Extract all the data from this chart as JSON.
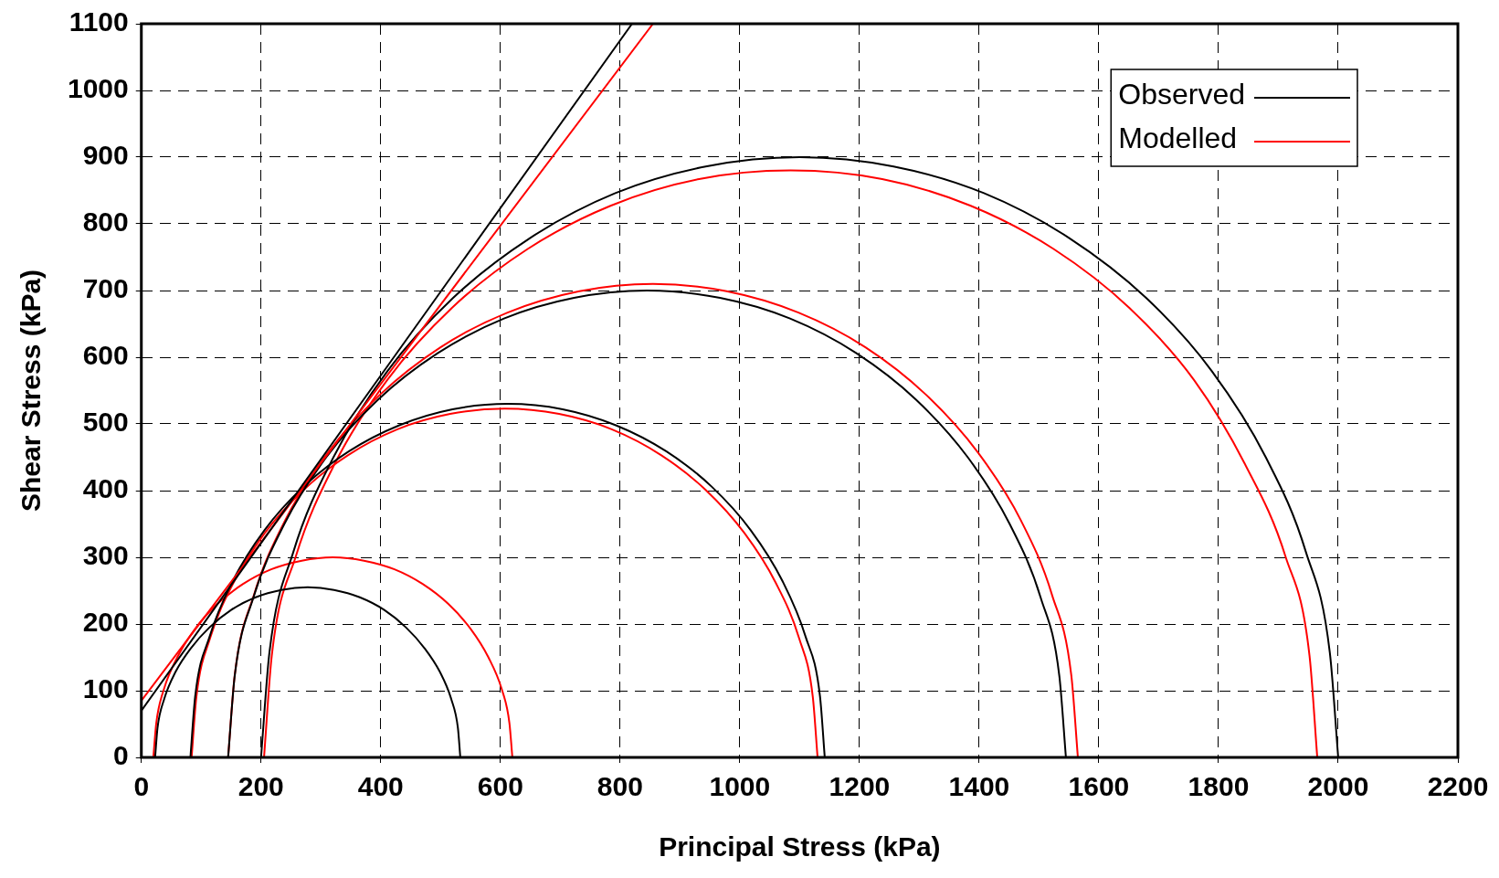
{
  "chart_data": {
    "type": "line",
    "xlabel": "Principal Stress (kPa)",
    "ylabel": "Shear Stress (kPa)",
    "xlim": [
      0,
      2200
    ],
    "xticks": [
      0,
      200,
      400,
      600,
      800,
      1000,
      1200,
      1400,
      1600,
      1800,
      2000,
      2200
    ],
    "ylim": [
      0,
      1100
    ],
    "yticks": [
      0,
      100,
      200,
      300,
      400,
      500,
      600,
      700,
      800,
      900,
      1000,
      1100
    ],
    "grid": true,
    "legend": "top right",
    "series": [
      {
        "name": "Observed",
        "color": "#000000",
        "x": [
          0,
          820
        ],
        "values": [
          70,
          1100
        ]
      },
      {
        "name": "Modelled",
        "color": "#ff0000",
        "x": [
          0,
          855
        ],
        "values": [
          85,
          1100
        ]
      },
      {
        "color": "#000000",
        "x": [
          23,
          27,
          38,
          57,
          83,
          114,
          150,
          191,
          234,
          278,
          322,
          365,
          406,
          442,
          473,
          499,
          518,
          529,
          533
        ],
        "values": [
          0,
          44,
          87,
          128,
          164,
          195,
          221,
          240,
          251,
          255,
          251,
          240,
          221,
          195,
          164,
          128,
          87,
          44,
          0
        ]
      },
      {
        "color": "#000000",
        "x": [
          82,
          90,
          114,
          153,
          206,
          271,
          347,
          431,
          520,
          612,
          704,
          793,
          877,
          953,
          1018,
          1071,
          1110,
          1134,
          1142
        ],
        "values": [
          0,
          92,
          181,
          265,
          341,
          406,
          459,
          498,
          522,
          530,
          522,
          498,
          459,
          406,
          341,
          265,
          181,
          92,
          0
        ]
      },
      {
        "color": "#000000",
        "x": [
          145,
          156,
          187,
          239,
          309,
          395,
          495,
          606,
          723,
          845,
          967,
          1084,
          1195,
          1295,
          1381,
          1451,
          1503,
          1534,
          1545
        ],
        "values": [
          0,
          122,
          239,
          350,
          450,
          536,
          606,
          658,
          689,
          700,
          689,
          658,
          606,
          536,
          450,
          350,
          239,
          122,
          0
        ]
      },
      {
        "color": "#000000",
        "x": [
          200,
          214,
          254,
          321,
          411,
          521,
          650,
          792,
          943,
          1100,
          1257,
          1408,
          1550,
          1679,
          1789,
          1879,
          1946,
          1986,
          2000
        ],
        "values": [
          0,
          157,
          308,
          450,
          579,
          689,
          779,
          846,
          886,
          900,
          886,
          846,
          779,
          689,
          579,
          450,
          308,
          157,
          0
        ]
      },
      {
        "color": "#ff0000",
        "x": [
          20,
          25,
          38,
          60,
          90,
          127,
          170,
          217,
          268,
          320,
          372,
          423,
          470,
          513,
          550,
          580,
          602,
          615,
          620
        ],
        "values": [
          0,
          52,
          103,
          150,
          193,
          230,
          260,
          282,
          295,
          300,
          295,
          282,
          260,
          230,
          193,
          150,
          103,
          52,
          0
        ]
      },
      {
        "color": "#ff0000",
        "x": [
          84,
          92,
          115,
          154,
          206,
          271,
          345,
          428,
          516,
          607,
          698,
          786,
          869,
          943,
          1008,
          1060,
          1099,
          1122,
          1130
        ],
        "values": [
          0,
          91,
          179,
          262,
          336,
          401,
          453,
          492,
          515,
          523,
          515,
          492,
          453,
          401,
          336,
          262,
          179,
          91,
          0
        ]
      },
      {
        "color": "#ff0000",
        "x": [
          145,
          156,
          188,
          240,
          311,
          399,
          500,
          612,
          732,
          855,
          978,
          1098,
          1210,
          1311,
          1399,
          1470,
          1522,
          1554,
          1565
        ],
        "values": [
          0,
          123,
          243,
          355,
          456,
          544,
          615,
          667,
          699,
          710,
          699,
          667,
          615,
          544,
          456,
          355,
          243,
          123,
          0
        ]
      },
      {
        "color": "#ff0000",
        "x": [
          205,
          218,
          258,
          323,
          411,
          519,
          645,
          784,
          932,
          1085,
          1238,
          1386,
          1525,
          1651,
          1759,
          1844,
          1912,
          1952,
          1965
        ],
        "values": [
          0,
          153,
          301,
          440,
          566,
          674,
          762,
          827,
          867,
          880,
          867,
          827,
          762,
          674,
          566,
          440,
          301,
          153,
          0
        ]
      }
    ]
  }
}
